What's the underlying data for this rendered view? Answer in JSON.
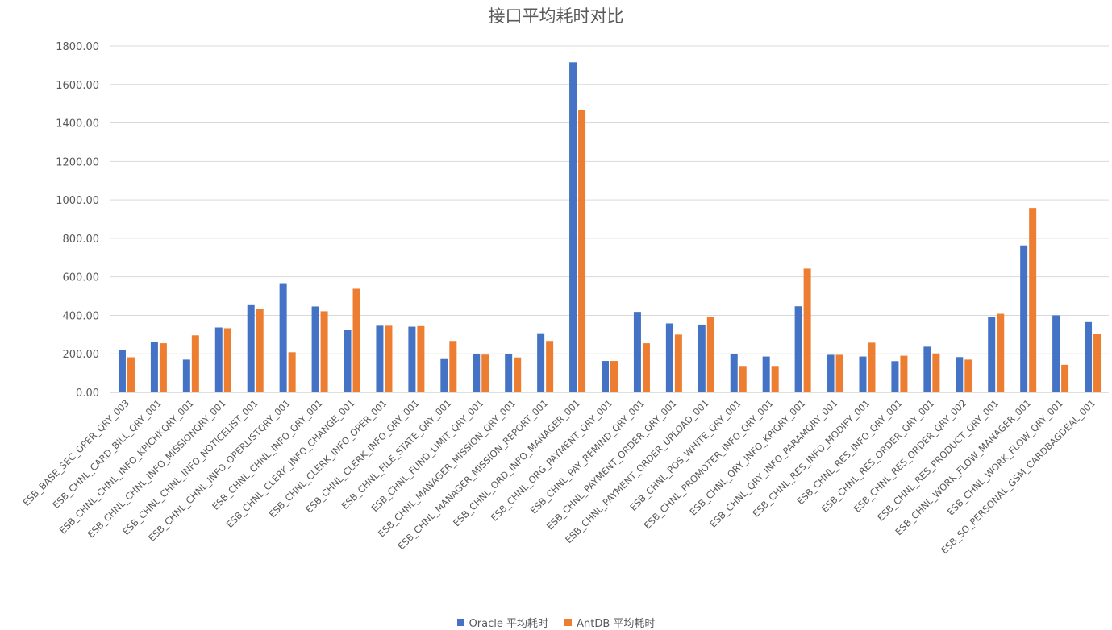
{
  "chart_data": {
    "type": "bar",
    "title": "接口平均耗时对比",
    "xlabel": "",
    "ylabel": "",
    "ylim": [
      0,
      1800
    ],
    "yticks": [
      "0.00",
      "200.00",
      "400.00",
      "600.00",
      "800.00",
      "1000.00",
      "1200.00",
      "1400.00",
      "1600.00",
      "1800.00"
    ],
    "grid": true,
    "legend_position": "bottom",
    "categories": [
      "ESB_BASE_SEC_OPER_QRY_003",
      "ESB_CHNL_CARD_BILL_QRY_001",
      "ESB_CHNL_CHNL_INFO_KPICHKQRY_001",
      "ESB_CHNL_CHNL_INFO_MISSIONQRY_001",
      "ESB_CHNL_CHNL_INFO_NOTICELIST_001",
      "ESB_CHNL_CHNL_INFO_OPERLISTQRY_001",
      "ESB_CHNL_CHNL_INFO_QRY_001",
      "ESB_CHNL_CLERK_INFO_CHANGE_001",
      "ESB_CHNL_CLERK_INFO_OPER_001",
      "ESB_CHNL_CLERK_INFO_QRY_001",
      "ESB_CHNL_FILE_STATE_QRY_001",
      "ESB_CHNL_FUND_LIMIT_QRY_001",
      "ESB_CHNL_MANAGER_MISSION_QRY_001",
      "ESB_CHNL_MANAGER_MISSION_REPORT_001",
      "ESB_CHNL_ORD_INFO_MANAGER_001",
      "ESB_CHNL_ORG_PAYMENT_QRY_001",
      "ESB_CHNL_PAY_REMIND_QRY_001",
      "ESB_CHNL_PAYMENT_ORDER_QRY_001",
      "ESB_CHNL_PAYMENT_ORDER_UPLOAD_001",
      "ESB_CHNL_POS_WHITE_QRY_001",
      "ESB_CHNL_PROMOTER_INFO_QRY_001",
      "ESB_CHNL_QRY_INFO_KPIQRY_001",
      "ESB_CHNL_QRY_INFO_PARAMQRY_001",
      "ESB_CHNL_RES_INFO_MODIFY_001",
      "ESB_CHNL_RES_INFO_QRY_001",
      "ESB_CHNL_RES_ORDER_QRY_001",
      "ESB_CHNL_RES_ORDER_QRY_002",
      "ESB_CHNL_RES_PRODUCT_QRY_001",
      "ESB_CHNL_WORK_FLOW_MANAGER_001",
      "ESB_CHNL_WORK_FLOW_QRY_001",
      "ESB_SO_PERSONAL_GSM_CARDBAGDEAL_001"
    ],
    "series": [
      {
        "name": "Oracle 平均耗时",
        "color": "#4472C4",
        "values": [
          218,
          262,
          170,
          337,
          457,
          567,
          446,
          325,
          346,
          341,
          177,
          198,
          198,
          307,
          1715,
          163,
          418,
          358,
          352,
          200,
          186,
          447,
          195,
          186,
          162,
          237,
          183,
          391,
          763,
          400,
          365
        ]
      },
      {
        "name": "AntDB 平均耗时",
        "color": "#ED7D31",
        "values": [
          182,
          255,
          296,
          333,
          432,
          208,
          421,
          538,
          346,
          344,
          267,
          196,
          181,
          267,
          1466,
          163,
          255,
          300,
          392,
          137,
          137,
          643,
          195,
          258,
          190,
          202,
          170,
          408,
          958,
          143,
          303
        ]
      }
    ]
  }
}
